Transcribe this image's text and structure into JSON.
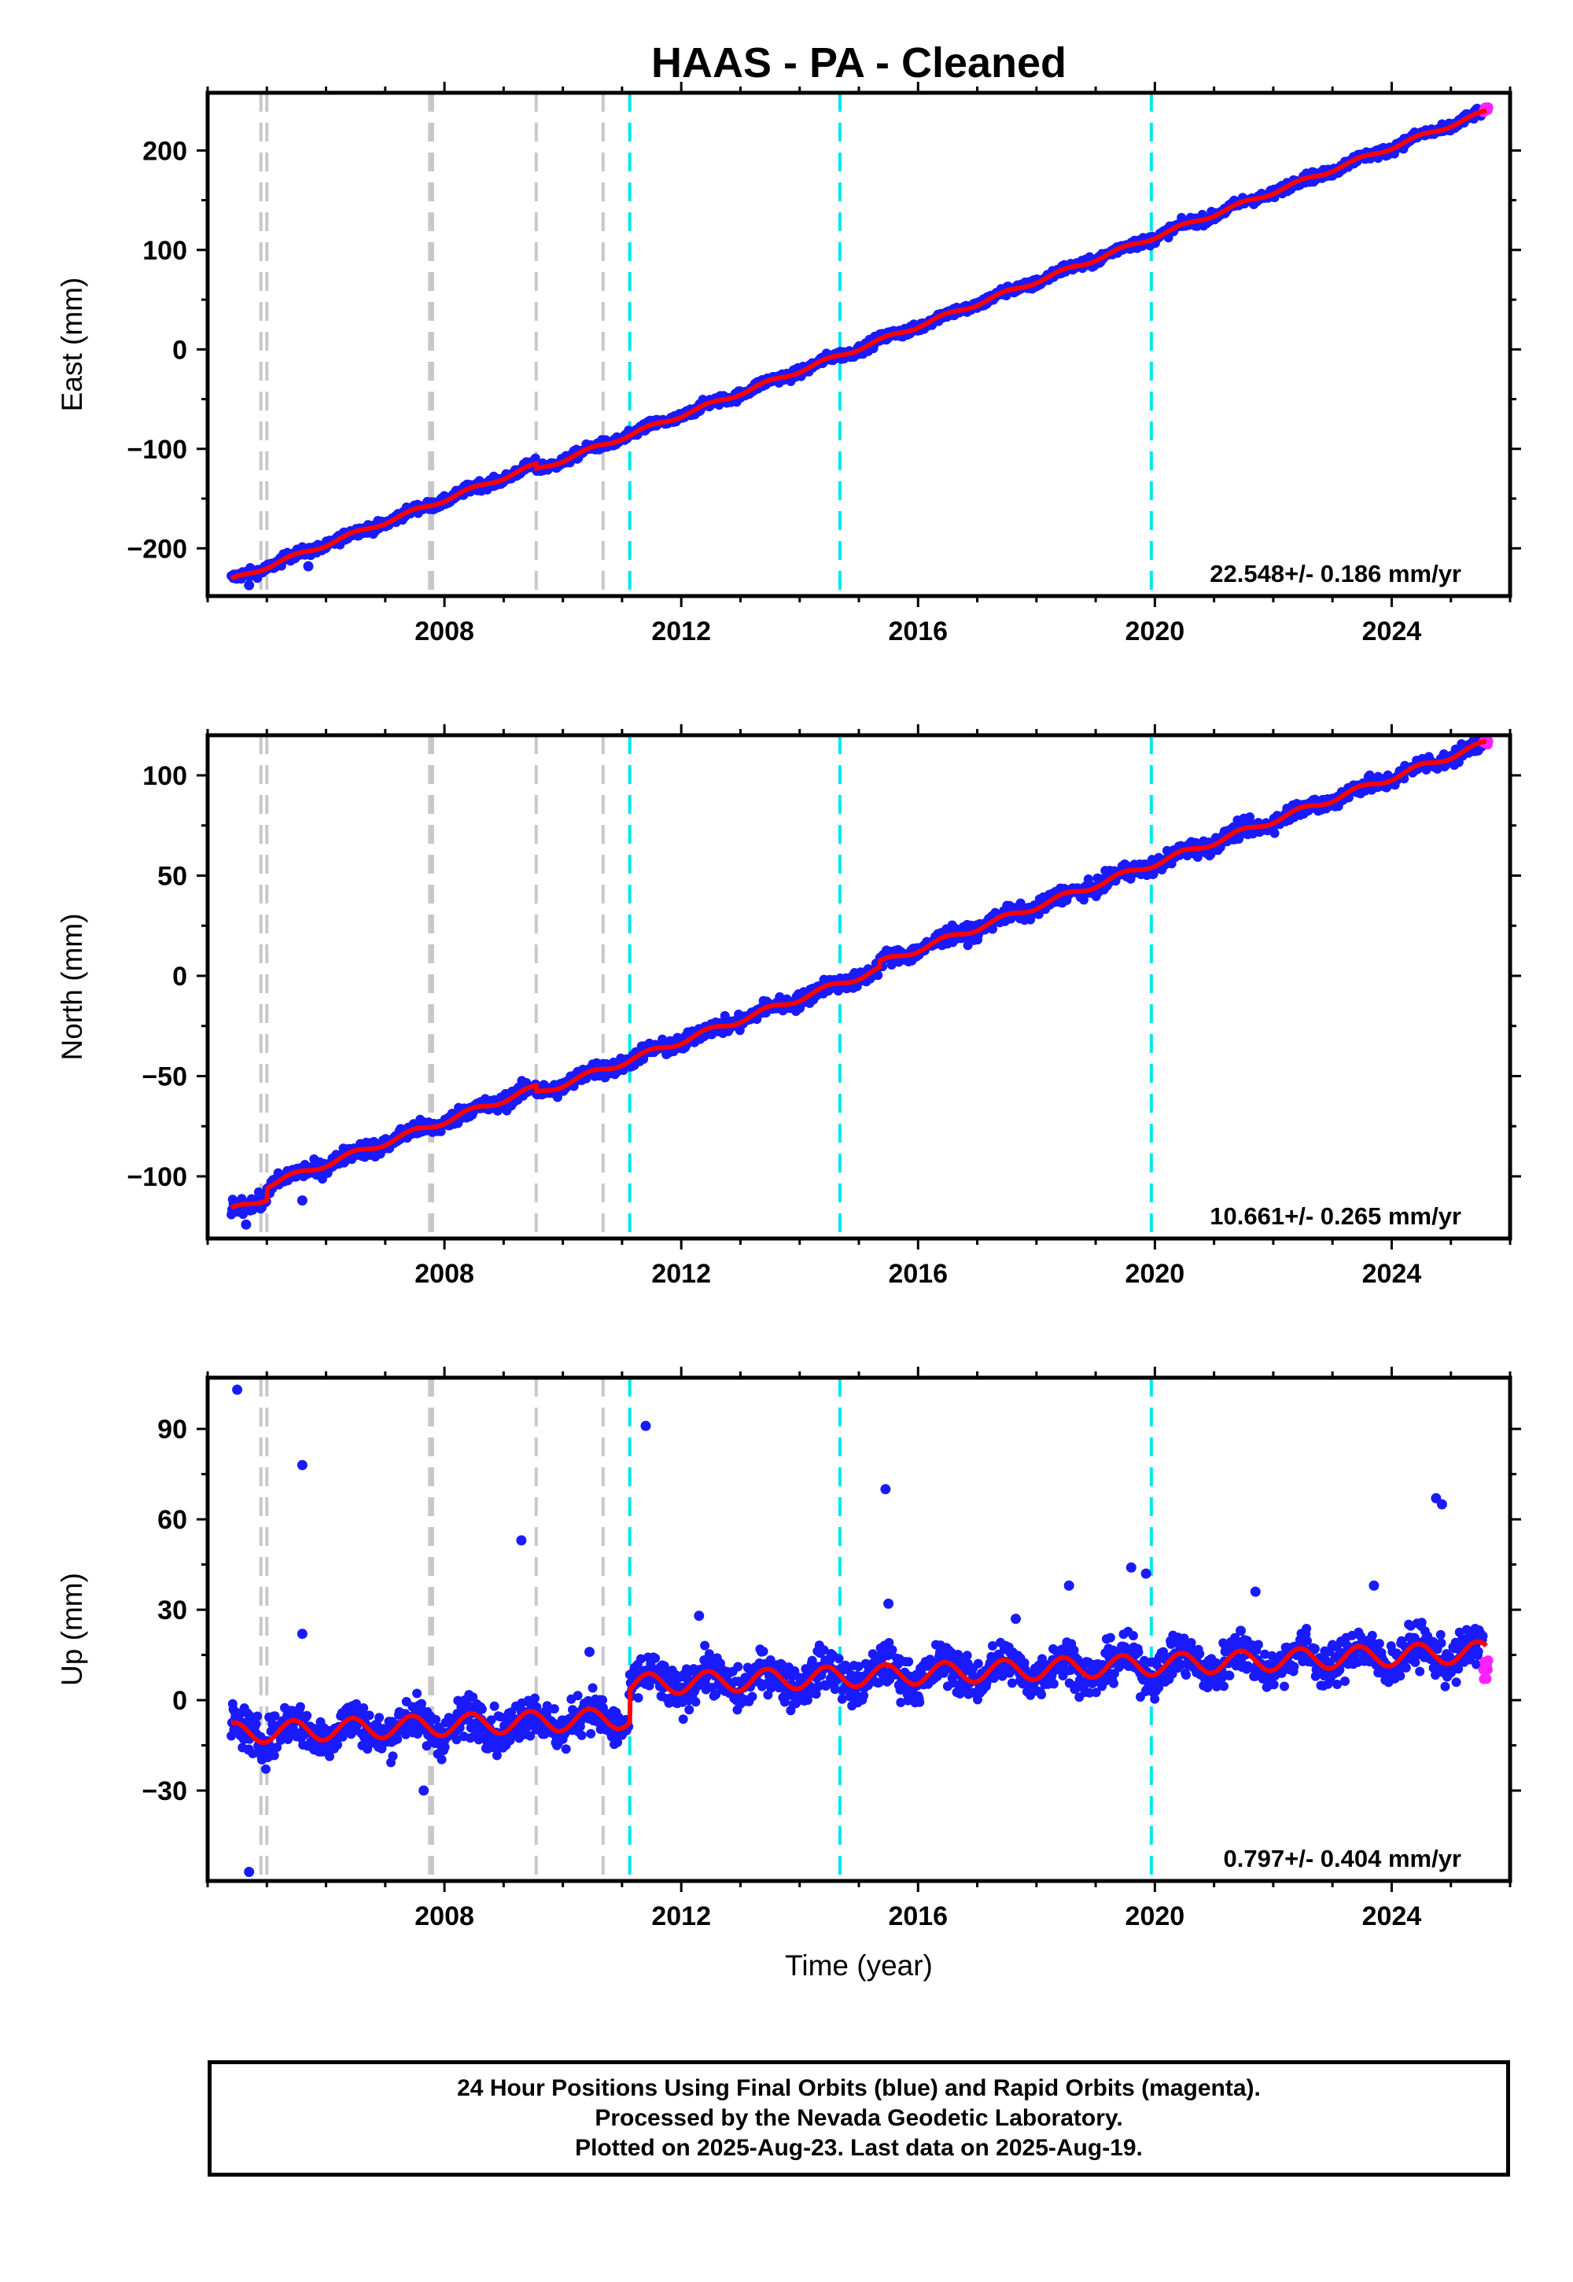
{
  "title": "HAAS  - PA - Cleaned",
  "colors": {
    "final_orbits": "#1a1aff",
    "rapid_orbits": "#ff22ff",
    "model": "#ff0000",
    "equipment_change": "#c8c8c8",
    "earthquake": "#00e5ee",
    "frame": "#000000"
  },
  "footer": {
    "line1": "24 Hour Positions Using Final Orbits (blue) and Rapid Orbits (magenta).",
    "line2": "Processed by the Nevada Geodetic Laboratory.",
    "line3": "Plotted on 2025-Aug-23. Last data on 2025-Aug-19."
  },
  "chart_data": [
    {
      "type": "scatter",
      "component": "East",
      "ylabel": "East (mm)",
      "xlabel": "",
      "rate_label": "22.548+/- 0.186 mm/yr",
      "xlim": [
        2004.0,
        2026.0
      ],
      "ylim": [
        -248,
        258
      ],
      "xticks": [
        2008,
        2012,
        2016,
        2020,
        2024
      ],
      "xtick_labels": [
        "2008",
        "2012",
        "2016",
        "2020",
        "2024"
      ],
      "yticks": [
        -200,
        -100,
        0,
        100,
        200
      ],
      "ytick_labels": [
        "−200",
        "−100",
        "0",
        "100",
        "200"
      ],
      "trend": {
        "x0": 2004.4,
        "y0": -232,
        "x1": 2025.6,
        "y1": 244
      },
      "offsets": [
        {
          "x": 2009.55,
          "dy": -5
        }
      ],
      "seasonal_amplitude": 2,
      "scatter_spread": 3.5,
      "final_x_range": [
        2004.4,
        2025.55
      ],
      "rapid_x_range": [
        2025.55,
        2025.63
      ],
      "outliers": [
        {
          "x": 2004.7,
          "y": -237
        },
        {
          "x": 2005.7,
          "y": -218
        }
      ],
      "equipment_changes": [
        2004.9,
        2005.0,
        2007.75,
        2007.8,
        2009.55,
        2010.68
      ],
      "earthquakes": [
        2011.13,
        2014.68,
        2019.94
      ]
    },
    {
      "type": "scatter",
      "component": "North",
      "ylabel": "North (mm)",
      "xlabel": "",
      "rate_label": "10.661+/- 0.265 mm/yr",
      "xlim": [
        2004.0,
        2026.0
      ],
      "ylim": [
        -131,
        120
      ],
      "xticks": [
        2008,
        2012,
        2016,
        2020,
        2024
      ],
      "xtick_labels": [
        "2008",
        "2012",
        "2016",
        "2020",
        "2024"
      ],
      "yticks": [
        -100,
        -50,
        0,
        50,
        100
      ],
      "ytick_labels": [
        "−100",
        "−50",
        "0",
        "50",
        "100"
      ],
      "trend": {
        "x0": 2004.4,
        "y0": -117,
        "x1": 2025.6,
        "y1": 110
      },
      "offsets": [
        {
          "x": 2005.0,
          "dy": 6
        },
        {
          "x": 2009.55,
          "dy": -3
        },
        {
          "x": 2015.35,
          "dy": 3
        }
      ],
      "seasonal_amplitude": 1.5,
      "scatter_spread": 2.8,
      "final_x_range": [
        2004.4,
        2025.55
      ],
      "rapid_x_range": [
        2025.55,
        2025.63
      ],
      "outliers": [
        {
          "x": 2004.65,
          "y": -124
        },
        {
          "x": 2005.6,
          "y": -112
        }
      ],
      "equipment_changes": [
        2004.9,
        2005.0,
        2007.75,
        2007.8,
        2009.55,
        2010.68
      ],
      "earthquakes": [
        2011.13,
        2014.68,
        2019.94
      ]
    },
    {
      "type": "scatter",
      "component": "Up",
      "ylabel": "Up (mm)",
      "xlabel": "Time (year)",
      "rate_label": "0.797+/- 0.404 mm/yr",
      "xlim": [
        2004.0,
        2026.0
      ],
      "ylim": [
        -60,
        107
      ],
      "xticks": [
        2008,
        2012,
        2016,
        2020,
        2024
      ],
      "xtick_labels": [
        "2008",
        "2012",
        "2016",
        "2020",
        "2024"
      ],
      "yticks": [
        -30,
        0,
        30,
        60,
        90
      ],
      "ytick_labels": [
        "−30",
        "0",
        "30",
        "60",
        "90"
      ],
      "trend": {
        "x0": 2004.4,
        "y0": -11,
        "x1": 2025.6,
        "y1": 5
      },
      "offsets": [
        {
          "x": 2011.13,
          "dy": 11
        }
      ],
      "seasonal_amplitude": 3.5,
      "scatter_spread": 5,
      "final_x_range": [
        2004.4,
        2025.55
      ],
      "rapid_x_range": [
        2025.55,
        2025.63
      ],
      "outliers": [
        {
          "x": 2004.5,
          "y": 103
        },
        {
          "x": 2004.7,
          "y": -57
        },
        {
          "x": 2005.6,
          "y": 78
        },
        {
          "x": 2005.6,
          "y": 22
        },
        {
          "x": 2009.3,
          "y": 53
        },
        {
          "x": 2011.4,
          "y": 91
        },
        {
          "x": 2015.45,
          "y": 70
        },
        {
          "x": 2015.5,
          "y": 32
        },
        {
          "x": 2012.3,
          "y": 28
        },
        {
          "x": 2017.65,
          "y": 27
        },
        {
          "x": 2018.55,
          "y": 38
        },
        {
          "x": 2019.6,
          "y": 44
        },
        {
          "x": 2019.85,
          "y": 42
        },
        {
          "x": 2021.7,
          "y": 36
        },
        {
          "x": 2023.7,
          "y": 38
        },
        {
          "x": 2024.75,
          "y": 67
        },
        {
          "x": 2024.85,
          "y": 65
        },
        {
          "x": 2007.65,
          "y": -30
        },
        {
          "x": 2010.45,
          "y": 16
        },
        {
          "x": 2021.45,
          "y": 23
        }
      ],
      "equipment_changes": [
        2004.9,
        2005.0,
        2007.75,
        2007.8,
        2009.55,
        2010.68
      ],
      "earthquakes": [
        2011.13,
        2014.68,
        2019.94
      ]
    }
  ]
}
